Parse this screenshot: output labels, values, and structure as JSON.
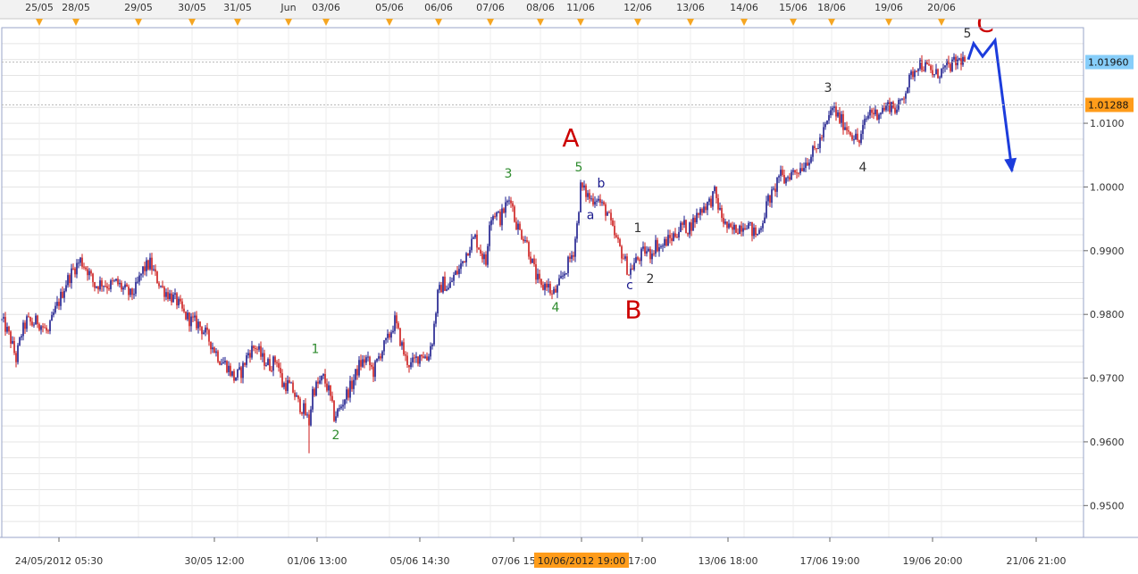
{
  "chart_data": {
    "type": "candlestick",
    "top_dates": [
      "25/05",
      "28/05",
      "29/05",
      "30/05",
      "31/05",
      "Jun",
      "03/06",
      "05/06",
      "06/06",
      "07/06",
      "08/06",
      "11/06",
      "12/06",
      "13/06",
      "14/06",
      "15/06",
      "18/06",
      "19/06",
      "20/06"
    ],
    "bottom_labels": [
      "24/05/2012 05:30",
      "30/05 12:00",
      "01/06 13:00",
      "05/06 14:30",
      "07/06 15",
      "10/06/2012 19:00",
      "17:00",
      "13/06 18:00",
      "17/06 19:00",
      "19/06 20:00",
      "21/06 21:00"
    ],
    "ylim": [
      0.945,
      1.025
    ],
    "yticks": [
      {
        "value": 1.01,
        "label": "1.0100"
      },
      {
        "value": 1.0,
        "label": "1.0000"
      },
      {
        "value": 0.99,
        "label": "0.9900"
      },
      {
        "value": 0.98,
        "label": "0.9800"
      },
      {
        "value": 0.97,
        "label": "0.9700"
      },
      {
        "value": 0.96,
        "label": "0.9600"
      },
      {
        "value": 0.95,
        "label": "0.9500"
      }
    ],
    "price_markers": [
      {
        "value": 1.0196,
        "label": "1.01960",
        "color": "#87cefa"
      },
      {
        "value": 1.01288,
        "label": "1.01288",
        "color": "#ff9c1a"
      }
    ],
    "price_path": [
      {
        "i": 0,
        "p": 0.979
      },
      {
        "i": 4,
        "p": 0.978
      },
      {
        "i": 10,
        "p": 0.976
      },
      {
        "i": 16,
        "p": 0.973
      },
      {
        "i": 22,
        "p": 0.977
      },
      {
        "i": 28,
        "p": 0.979
      },
      {
        "i": 34,
        "p": 0.9785
      },
      {
        "i": 40,
        "p": 0.979
      },
      {
        "i": 46,
        "p": 0.978
      },
      {
        "i": 52,
        "p": 0.977
      },
      {
        "i": 58,
        "p": 0.98
      },
      {
        "i": 64,
        "p": 0.982
      },
      {
        "i": 72,
        "p": 0.985
      },
      {
        "i": 80,
        "p": 0.987
      },
      {
        "i": 88,
        "p": 0.9885
      },
      {
        "i": 96,
        "p": 0.987
      },
      {
        "i": 104,
        "p": 0.9845
      },
      {
        "i": 112,
        "p": 0.985
      },
      {
        "i": 120,
        "p": 0.9845
      },
      {
        "i": 128,
        "p": 0.985
      },
      {
        "i": 136,
        "p": 0.984
      },
      {
        "i": 144,
        "p": 0.983
      },
      {
        "i": 150,
        "p": 0.984
      },
      {
        "i": 158,
        "p": 0.987
      },
      {
        "i": 166,
        "p": 0.988
      },
      {
        "i": 172,
        "p": 0.986
      },
      {
        "i": 180,
        "p": 0.984
      },
      {
        "i": 188,
        "p": 0.983
      },
      {
        "i": 196,
        "p": 0.982
      },
      {
        "i": 204,
        "p": 0.98
      },
      {
        "i": 212,
        "p": 0.979
      },
      {
        "i": 220,
        "p": 0.9785
      },
      {
        "i": 228,
        "p": 0.977
      },
      {
        "i": 236,
        "p": 0.975
      },
      {
        "i": 244,
        "p": 0.973
      },
      {
        "i": 252,
        "p": 0.972
      },
      {
        "i": 260,
        "p": 0.97
      },
      {
        "i": 268,
        "p": 0.971
      },
      {
        "i": 276,
        "p": 0.974
      },
      {
        "i": 284,
        "p": 0.975
      },
      {
        "i": 292,
        "p": 0.973
      },
      {
        "i": 300,
        "p": 0.972
      },
      {
        "i": 308,
        "p": 0.973
      },
      {
        "i": 314,
        "p": 0.969
      },
      {
        "i": 320,
        "p": 0.969
      },
      {
        "i": 326,
        "p": 0.968
      },
      {
        "i": 332,
        "p": 0.966
      },
      {
        "i": 338,
        "p": 0.965
      },
      {
        "i": 344,
        "p": 0.963
      },
      {
        "i": 348,
        "p": 0.968
      },
      {
        "i": 354,
        "p": 0.969
      },
      {
        "i": 360,
        "p": 0.97
      },
      {
        "i": 366,
        "p": 0.968
      },
      {
        "i": 372,
        "p": 0.964
      },
      {
        "i": 378,
        "p": 0.965
      },
      {
        "i": 384,
        "p": 0.967
      },
      {
        "i": 392,
        "p": 0.969
      },
      {
        "i": 400,
        "p": 0.972
      },
      {
        "i": 408,
        "p": 0.973
      },
      {
        "i": 416,
        "p": 0.971
      },
      {
        "i": 424,
        "p": 0.974
      },
      {
        "i": 432,
        "p": 0.976
      },
      {
        "i": 440,
        "p": 0.979
      },
      {
        "i": 446,
        "p": 0.976
      },
      {
        "i": 452,
        "p": 0.973
      },
      {
        "i": 458,
        "p": 0.972
      },
      {
        "i": 464,
        "p": 0.973
      },
      {
        "i": 470,
        "p": 0.974
      },
      {
        "i": 476,
        "p": 0.973
      },
      {
        "i": 482,
        "p": 0.976
      },
      {
        "i": 488,
        "p": 0.983
      },
      {
        "i": 494,
        "p": 0.985
      },
      {
        "i": 500,
        "p": 0.984
      },
      {
        "i": 506,
        "p": 0.986
      },
      {
        "i": 512,
        "p": 0.987
      },
      {
        "i": 518,
        "p": 0.989
      },
      {
        "i": 524,
        "p": 0.991
      },
      {
        "i": 530,
        "p": 0.992
      },
      {
        "i": 536,
        "p": 0.99
      },
      {
        "i": 542,
        "p": 0.988
      },
      {
        "i": 546,
        "p": 0.995
      },
      {
        "i": 552,
        "p": 0.996
      },
      {
        "i": 558,
        "p": 0.995
      },
      {
        "i": 564,
        "p": 0.997
      },
      {
        "i": 570,
        "p": 0.9985
      },
      {
        "i": 574,
        "p": 0.995
      },
      {
        "i": 580,
        "p": 0.993
      },
      {
        "i": 586,
        "p": 0.992
      },
      {
        "i": 592,
        "p": 0.989
      },
      {
        "i": 598,
        "p": 0.986
      },
      {
        "i": 604,
        "p": 0.984
      },
      {
        "i": 610,
        "p": 0.985
      },
      {
        "i": 616,
        "p": 0.983
      },
      {
        "i": 622,
        "p": 0.984
      },
      {
        "i": 628,
        "p": 0.986
      },
      {
        "i": 634,
        "p": 0.988
      },
      {
        "i": 640,
        "p": 0.99
      },
      {
        "i": 644,
        "p": 0.994
      },
      {
        "i": 648,
        "p": 1.0
      },
      {
        "i": 654,
        "p": 0.999
      },
      {
        "i": 660,
        "p": 0.998
      },
      {
        "i": 666,
        "p": 0.9985
      },
      {
        "i": 672,
        "p": 0.997
      },
      {
        "i": 678,
        "p": 0.996
      },
      {
        "i": 684,
        "p": 0.993
      },
      {
        "i": 690,
        "p": 0.991
      },
      {
        "i": 696,
        "p": 0.989
      },
      {
        "i": 702,
        "p": 0.9865
      },
      {
        "i": 708,
        "p": 0.988
      },
      {
        "i": 714,
        "p": 0.989
      },
      {
        "i": 720,
        "p": 0.99
      },
      {
        "i": 726,
        "p": 0.9895
      },
      {
        "i": 732,
        "p": 0.991
      },
      {
        "i": 738,
        "p": 0.9905
      },
      {
        "i": 744,
        "p": 0.9915
      },
      {
        "i": 750,
        "p": 0.992
      },
      {
        "i": 756,
        "p": 0.993
      },
      {
        "i": 762,
        "p": 0.994
      },
      {
        "i": 768,
        "p": 0.9935
      },
      {
        "i": 774,
        "p": 0.9945
      },
      {
        "i": 780,
        "p": 0.996
      },
      {
        "i": 786,
        "p": 0.997
      },
      {
        "i": 792,
        "p": 0.9975
      },
      {
        "i": 798,
        "p": 0.999
      },
      {
        "i": 804,
        "p": 0.996
      },
      {
        "i": 810,
        "p": 0.994
      },
      {
        "i": 816,
        "p": 0.993
      },
      {
        "i": 822,
        "p": 0.9935
      },
      {
        "i": 828,
        "p": 0.994
      },
      {
        "i": 834,
        "p": 0.9945
      },
      {
        "i": 840,
        "p": 0.993
      },
      {
        "i": 846,
        "p": 0.9925
      },
      {
        "i": 852,
        "p": 0.995
      },
      {
        "i": 858,
        "p": 0.998
      },
      {
        "i": 864,
        "p": 0.999
      },
      {
        "i": 870,
        "p": 1.002
      },
      {
        "i": 876,
        "p": 1.001
      },
      {
        "i": 882,
        "p": 1.002
      },
      {
        "i": 888,
        "p": 1.0025
      },
      {
        "i": 894,
        "p": 1.003
      },
      {
        "i": 900,
        "p": 1.004
      },
      {
        "i": 906,
        "p": 1.005
      },
      {
        "i": 912,
        "p": 1.006
      },
      {
        "i": 918,
        "p": 1.008
      },
      {
        "i": 924,
        "p": 1.01
      },
      {
        "i": 930,
        "p": 1.0125
      },
      {
        "i": 936,
        "p": 1.011
      },
      {
        "i": 942,
        "p": 1.01
      },
      {
        "i": 948,
        "p": 1.009
      },
      {
        "i": 954,
        "p": 1.008
      },
      {
        "i": 960,
        "p": 1.007
      },
      {
        "i": 966,
        "p": 1.01
      },
      {
        "i": 972,
        "p": 1.012
      },
      {
        "i": 978,
        "p": 1.0115
      },
      {
        "i": 984,
        "p": 1.012
      },
      {
        "i": 990,
        "p": 1.0125
      },
      {
        "i": 996,
        "p": 1.013
      },
      {
        "i": 1002,
        "p": 1.012
      },
      {
        "i": 1008,
        "p": 1.014
      },
      {
        "i": 1014,
        "p": 1.016
      },
      {
        "i": 1020,
        "p": 1.018
      },
      {
        "i": 1026,
        "p": 1.0195
      },
      {
        "i": 1032,
        "p": 1.019
      },
      {
        "i": 1038,
        "p": 1.0185
      },
      {
        "i": 1044,
        "p": 1.0175
      },
      {
        "i": 1050,
        "p": 1.018
      },
      {
        "i": 1056,
        "p": 1.0185
      },
      {
        "i": 1062,
        "p": 1.019
      },
      {
        "i": 1068,
        "p": 1.0195
      },
      {
        "i": 1074,
        "p": 1.02
      },
      {
        "i": 1080,
        "p": 1.0196
      }
    ],
    "forecast_path": [
      {
        "i": 1082,
        "p": 1.02
      },
      {
        "i": 1088,
        "p": 1.0225
      },
      {
        "i": 1098,
        "p": 1.0205
      },
      {
        "i": 1112,
        "p": 1.023
      },
      {
        "i": 1131,
        "p": 1.0025
      }
    ],
    "wave_labels": [
      {
        "text": "A",
        "i": 637,
        "p": 1.0075,
        "color": "#cc0000",
        "size": "large"
      },
      {
        "text": "B",
        "i": 707,
        "p": 0.9805,
        "color": "#cc0000",
        "size": "large"
      },
      {
        "text": "C",
        "i": 1101,
        "p": 1.0255,
        "color": "#cc0000",
        "size": "large"
      },
      {
        "text": "1",
        "i": 351,
        "p": 0.9745,
        "color": "#2e8b2e",
        "size": "small"
      },
      {
        "text": "2",
        "i": 374,
        "p": 0.961,
        "color": "#2e8b2e",
        "size": "small"
      },
      {
        "text": "3",
        "i": 567,
        "p": 1.002,
        "color": "#2e8b2e",
        "size": "small"
      },
      {
        "text": "4",
        "i": 620,
        "p": 0.981,
        "color": "#2e8b2e",
        "size": "small"
      },
      {
        "text": "5",
        "i": 646,
        "p": 1.003,
        "color": "#2e8b2e",
        "size": "small"
      },
      {
        "text": "a",
        "i": 659,
        "p": 0.9955,
        "color": "#1a1a8c",
        "size": "small"
      },
      {
        "text": "b",
        "i": 671,
        "p": 1.0005,
        "color": "#1a1a8c",
        "size": "small"
      },
      {
        "text": "c",
        "i": 703,
        "p": 0.9845,
        "color": "#1a1a8c",
        "size": "small"
      },
      {
        "text": "1",
        "i": 712,
        "p": 0.9935,
        "color": "#333333",
        "size": "small"
      },
      {
        "text": "2",
        "i": 726,
        "p": 0.9855,
        "color": "#333333",
        "size": "small"
      },
      {
        "text": "3",
        "i": 925,
        "p": 1.0155,
        "color": "#333333",
        "size": "small"
      },
      {
        "text": "4",
        "i": 964,
        "p": 1.003,
        "color": "#333333",
        "size": "small"
      },
      {
        "text": "5",
        "i": 1081,
        "p": 1.024,
        "color": "#333333",
        "size": "small"
      }
    ],
    "colors": {
      "up": "#1a1a8c",
      "down": "#cc1a1a",
      "forecast": "#1c3cdc",
      "grid": "#e4e4e4",
      "marker": "#f5a623"
    },
    "grid": true,
    "legend": "none"
  }
}
